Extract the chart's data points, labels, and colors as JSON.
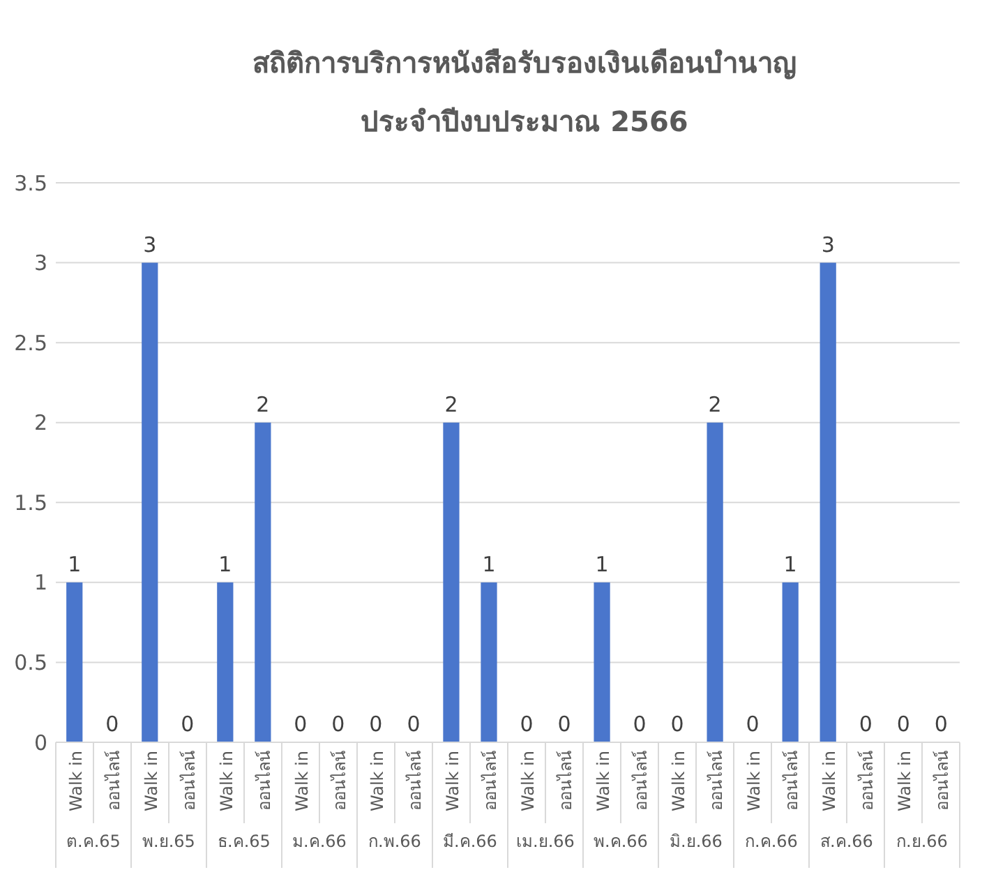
{
  "chart_data": {
    "type": "bar",
    "title": "สถิติการบริการหนังสือรับรองเงินเดือนบำนาญ\nประจำปีงบประมาณ 2566",
    "categories": [
      "Walk in",
      "ออนไลน์",
      "Walk in",
      "ออนไลน์",
      "Walk in",
      "ออนไลน์",
      "Walk in",
      "ออนไลน์",
      "Walk in",
      "ออนไลน์",
      "Walk in",
      "ออนไลน์",
      "Walk in",
      "ออนไลน์",
      "Walk in",
      "ออนไลน์",
      "Walk in",
      "ออนไลน์",
      "Walk in",
      "ออนไลน์",
      "Walk in",
      "ออนไลน์",
      "Walk in",
      "ออนไลน์"
    ],
    "values": [
      1,
      0,
      3,
      0,
      1,
      2,
      0,
      0,
      0,
      0,
      2,
      1,
      0,
      0,
      1,
      0,
      0,
      2,
      0,
      1,
      3,
      0,
      0,
      0
    ],
    "color": "#4a76cc",
    "annotations": [
      "ต.ค.65",
      "พ.ย.65",
      "ธ.ค.65",
      "ม.ค.66",
      "ก.พ.66",
      "มี.ค.66",
      "เม.ย.66",
      "พ.ค.66",
      "มิ.ย.66",
      "ก.ค.66",
      "ส.ค.66",
      "ก.ย.66"
    ],
    "ylim": [
      0,
      3.5
    ],
    "yticks": [
      0,
      0.5,
      1,
      1.5,
      2,
      2.5,
      3,
      3.5
    ],
    "grid": "y",
    "data_labels": true
  }
}
